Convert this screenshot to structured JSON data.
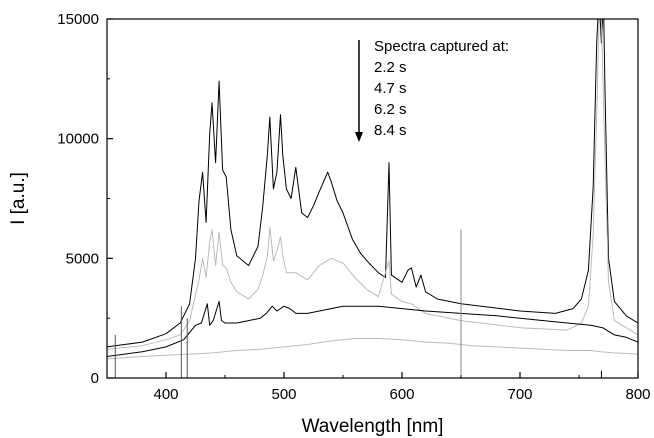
{
  "chart_data": {
    "type": "line",
    "xlabel": "Wavelength [nm]",
    "ylabel": "I [a.u.]",
    "xlim": [
      350,
      800
    ],
    "ylim": [
      0,
      15000
    ],
    "x_ticks": [
      400,
      500,
      600,
      700,
      800
    ],
    "x_tick_labels": [
      "400",
      "500",
      "600",
      "700",
      "800"
    ],
    "y_ticks": [
      0,
      5000,
      10000,
      15000
    ],
    "y_tick_labels": [
      "0",
      "5000",
      "10000",
      "15000"
    ],
    "grid": false,
    "legend_placement": "top-center",
    "annotation": {
      "title": "Spectra captured at:",
      "entries": [
        "2.2 s",
        "4.7 s",
        "6.2 s",
        "8.4 s"
      ],
      "arrow": "down"
    },
    "series": [
      {
        "color": "#000000",
        "points": [
          [
            350,
            1300
          ],
          [
            380,
            1500
          ],
          [
            400,
            1850
          ],
          [
            412,
            2300
          ],
          [
            420,
            3100
          ],
          [
            425,
            5000
          ],
          [
            428,
            7400
          ],
          [
            431,
            8600
          ],
          [
            434,
            6500
          ],
          [
            437,
            10200
          ],
          [
            439,
            11500
          ],
          [
            442,
            9000
          ],
          [
            445,
            12400
          ],
          [
            448,
            8700
          ],
          [
            451,
            8400
          ],
          [
            455,
            6200
          ],
          [
            460,
            5100
          ],
          [
            470,
            4700
          ],
          [
            478,
            5500
          ],
          [
            482,
            7200
          ],
          [
            486,
            9400
          ],
          [
            488,
            10900
          ],
          [
            491,
            7900
          ],
          [
            494,
            8600
          ],
          [
            497,
            11000
          ],
          [
            499,
            9300
          ],
          [
            502,
            7900
          ],
          [
            506,
            7500
          ],
          [
            510,
            8800
          ],
          [
            515,
            6900
          ],
          [
            520,
            6700
          ],
          [
            525,
            7200
          ],
          [
            530,
            7800
          ],
          [
            537,
            8600
          ],
          [
            540,
            8200
          ],
          [
            545,
            7400
          ],
          [
            550,
            6900
          ],
          [
            558,
            5800
          ],
          [
            565,
            5200
          ],
          [
            572,
            4800
          ],
          [
            580,
            4400
          ],
          [
            586,
            4200
          ],
          [
            589,
            9000
          ],
          [
            591,
            4300
          ],
          [
            600,
            4000
          ],
          [
            605,
            4500
          ],
          [
            608,
            4600
          ],
          [
            612,
            3800
          ],
          [
            616,
            4300
          ],
          [
            620,
            3600
          ],
          [
            630,
            3300
          ],
          [
            650,
            3100
          ],
          [
            700,
            2800
          ],
          [
            730,
            2700
          ],
          [
            745,
            2900
          ],
          [
            752,
            3300
          ],
          [
            758,
            4500
          ],
          [
            762,
            8000
          ],
          [
            765,
            14000
          ],
          [
            766,
            15000
          ],
          [
            768,
            15000
          ],
          [
            769,
            14000
          ],
          [
            770,
            15000
          ],
          [
            771,
            15000
          ],
          [
            772,
            12000
          ],
          [
            775,
            5000
          ],
          [
            780,
            3200
          ],
          [
            790,
            2600
          ],
          [
            800,
            2300
          ]
        ]
      },
      {
        "color": "#bbbbbb",
        "points": [
          [
            350,
            1200
          ],
          [
            380,
            1350
          ],
          [
            400,
            1600
          ],
          [
            412,
            1800
          ],
          [
            420,
            2400
          ],
          [
            428,
            4100
          ],
          [
            431,
            5000
          ],
          [
            434,
            4200
          ],
          [
            437,
            5700
          ],
          [
            439,
            6200
          ],
          [
            442,
            4700
          ],
          [
            445,
            6100
          ],
          [
            448,
            4700
          ],
          [
            451,
            4600
          ],
          [
            455,
            4000
          ],
          [
            460,
            3600
          ],
          [
            470,
            3300
          ],
          [
            478,
            3700
          ],
          [
            482,
            4300
          ],
          [
            486,
            5100
          ],
          [
            488,
            6300
          ],
          [
            491,
            4900
          ],
          [
            494,
            5300
          ],
          [
            497,
            5900
          ],
          [
            499,
            5100
          ],
          [
            502,
            4400
          ],
          [
            510,
            4400
          ],
          [
            520,
            4100
          ],
          [
            530,
            4700
          ],
          [
            540,
            5000
          ],
          [
            550,
            4800
          ],
          [
            560,
            4200
          ],
          [
            570,
            3700
          ],
          [
            580,
            3400
          ],
          [
            589,
            4900
          ],
          [
            591,
            3500
          ],
          [
            600,
            3200
          ],
          [
            608,
            3100
          ],
          [
            620,
            2700
          ],
          [
            650,
            2400
          ],
          [
            700,
            2100
          ],
          [
            740,
            2000
          ],
          [
            752,
            2300
          ],
          [
            758,
            3000
          ],
          [
            762,
            6000
          ],
          [
            765,
            11000
          ],
          [
            767,
            15000
          ],
          [
            769,
            15000
          ],
          [
            771,
            11000
          ],
          [
            775,
            4000
          ],
          [
            780,
            2400
          ],
          [
            800,
            1800
          ]
        ]
      },
      {
        "color": "#000000",
        "points": [
          [
            350,
            900
          ],
          [
            380,
            1100
          ],
          [
            400,
            1300
          ],
          [
            415,
            1600
          ],
          [
            420,
            1900
          ],
          [
            425,
            2200
          ],
          [
            430,
            2300
          ],
          [
            435,
            3100
          ],
          [
            437,
            2200
          ],
          [
            440,
            2400
          ],
          [
            445,
            3200
          ],
          [
            447,
            2400
          ],
          [
            450,
            2300
          ],
          [
            460,
            2300
          ],
          [
            470,
            2400
          ],
          [
            480,
            2500
          ],
          [
            485,
            2700
          ],
          [
            490,
            3000
          ],
          [
            494,
            2800
          ],
          [
            500,
            3000
          ],
          [
            505,
            2900
          ],
          [
            510,
            2700
          ],
          [
            520,
            2700
          ],
          [
            530,
            2800
          ],
          [
            540,
            2900
          ],
          [
            550,
            3000
          ],
          [
            560,
            3000
          ],
          [
            580,
            3000
          ],
          [
            600,
            2900
          ],
          [
            620,
            2800
          ],
          [
            650,
            2700
          ],
          [
            680,
            2600
          ],
          [
            700,
            2500
          ],
          [
            720,
            2400
          ],
          [
            740,
            2300
          ],
          [
            760,
            2200
          ],
          [
            770,
            2100
          ],
          [
            780,
            1800
          ],
          [
            790,
            1700
          ],
          [
            800,
            1500
          ]
        ]
      },
      {
        "color": "#bbbbbb",
        "points": [
          [
            350,
            800
          ],
          [
            380,
            900
          ],
          [
            400,
            950
          ],
          [
            420,
            1000
          ],
          [
            440,
            1050
          ],
          [
            460,
            1150
          ],
          [
            480,
            1200
          ],
          [
            500,
            1300
          ],
          [
            520,
            1400
          ],
          [
            540,
            1550
          ],
          [
            560,
            1650
          ],
          [
            580,
            1650
          ],
          [
            600,
            1600
          ],
          [
            620,
            1500
          ],
          [
            640,
            1450
          ],
          [
            650,
            1400
          ],
          [
            660,
            1350
          ],
          [
            680,
            1300
          ],
          [
            700,
            1250
          ],
          [
            720,
            1200
          ],
          [
            740,
            1150
          ],
          [
            760,
            1150
          ],
          [
            768,
            1100
          ],
          [
            780,
            1050
          ],
          [
            800,
            1000
          ]
        ]
      }
    ],
    "spikes": [
      {
        "color": "#888888",
        "x": 650,
        "y": 6200
      },
      {
        "color": "#000000",
        "x": 769,
        "y": 300
      },
      {
        "color": "#555555",
        "x": 357,
        "y": 1800
      },
      {
        "color": "#555555",
        "x": 413,
        "y": 3000
      },
      {
        "color": "#555555",
        "x": 418,
        "y": 2500
      }
    ]
  }
}
